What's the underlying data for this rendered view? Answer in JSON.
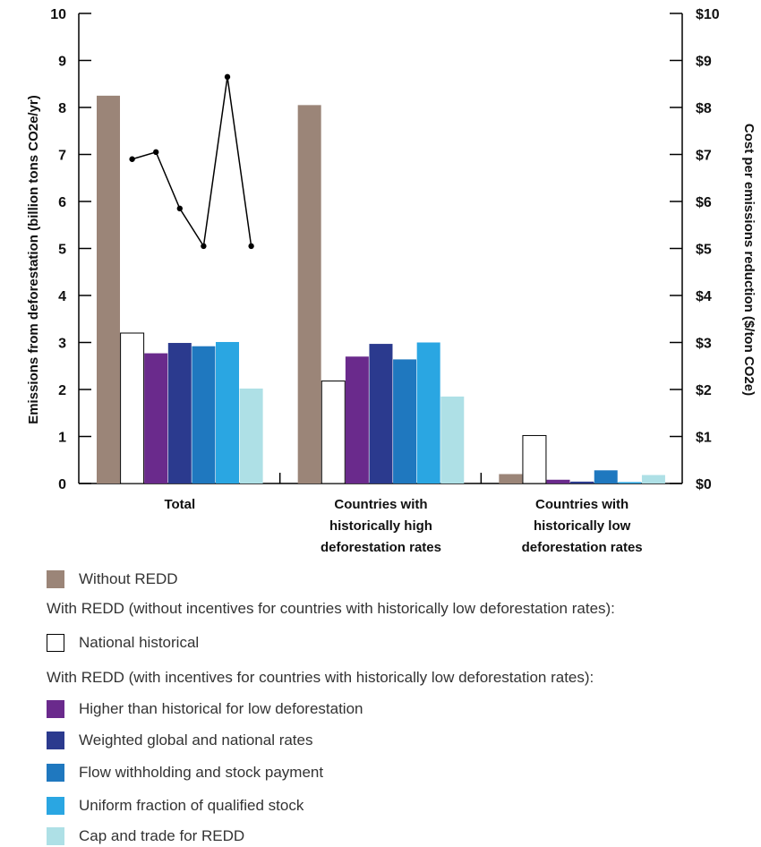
{
  "chart_data": {
    "type": "bar",
    "categories": [
      "Total",
      "Countries with historically high deforestation rates",
      "Countries with historically low deforestation rates"
    ],
    "category_label_lines": [
      [
        "Total"
      ],
      [
        "Countries with",
        "historically high",
        "deforestation rates"
      ],
      [
        "Countries with",
        "historically low",
        "deforestation rates"
      ]
    ],
    "ylabel": "Emissions from deforestation (billion tons CO2e/yr)",
    "ylabel_right": "Cost per emissions reduction ($/ton CO2e)",
    "ylim": [
      0,
      10
    ],
    "ylim_right": [
      0,
      10
    ],
    "yticks": [
      "0",
      "1",
      "2",
      "3",
      "4",
      "5",
      "6",
      "7",
      "8",
      "9",
      "10"
    ],
    "yticks_right": [
      "$0",
      "$1",
      "$2",
      "$3",
      "$4",
      "$5",
      "$6",
      "$7",
      "$8",
      "$9",
      "$10"
    ],
    "grid": false,
    "series": [
      {
        "name": "Without REDD",
        "color": "#9b8578",
        "values": [
          8.25,
          8.05,
          0.2
        ]
      },
      {
        "name": "National historical",
        "color": "#ffffff",
        "values": [
          3.2,
          2.18,
          1.02
        ]
      },
      {
        "name": "Higher than historical for low deforestation",
        "color": "#6a2a8c",
        "values": [
          2.77,
          2.7,
          0.08
        ]
      },
      {
        "name": "Weighted global and national rates",
        "color": "#2b3a8e",
        "values": [
          2.99,
          2.97,
          0.04
        ]
      },
      {
        "name": "Flow withholding and stock payment",
        "color": "#1f78bf",
        "values": [
          2.92,
          2.64,
          0.28
        ]
      },
      {
        "name": "Uniform fraction of qualified stock",
        "color": "#2aa6e2",
        "values": [
          3.01,
          3.0,
          0.03
        ]
      },
      {
        "name": "Cap and trade for REDD",
        "color": "#aee0e6",
        "values": [
          2.02,
          1.85,
          0.18
        ]
      }
    ],
    "cost_line": {
      "axis": "right",
      "color": "#000000",
      "points": [
        {
          "series_index": 1,
          "value": 6.9
        },
        {
          "series_index": 2,
          "value": 7.05
        },
        {
          "series_index": 3,
          "value": 5.85
        },
        {
          "series_index": 4,
          "value": 5.05
        },
        {
          "series_index": 5,
          "value": 8.65
        },
        {
          "series_index": 6,
          "value": 5.05
        }
      ]
    }
  },
  "legend": {
    "heading_without_incentives": "With REDD (without incentives for countries with historically low deforestation rates):",
    "heading_with_incentives": "With REDD (with incentives for countries with historically low deforestation rates):"
  }
}
